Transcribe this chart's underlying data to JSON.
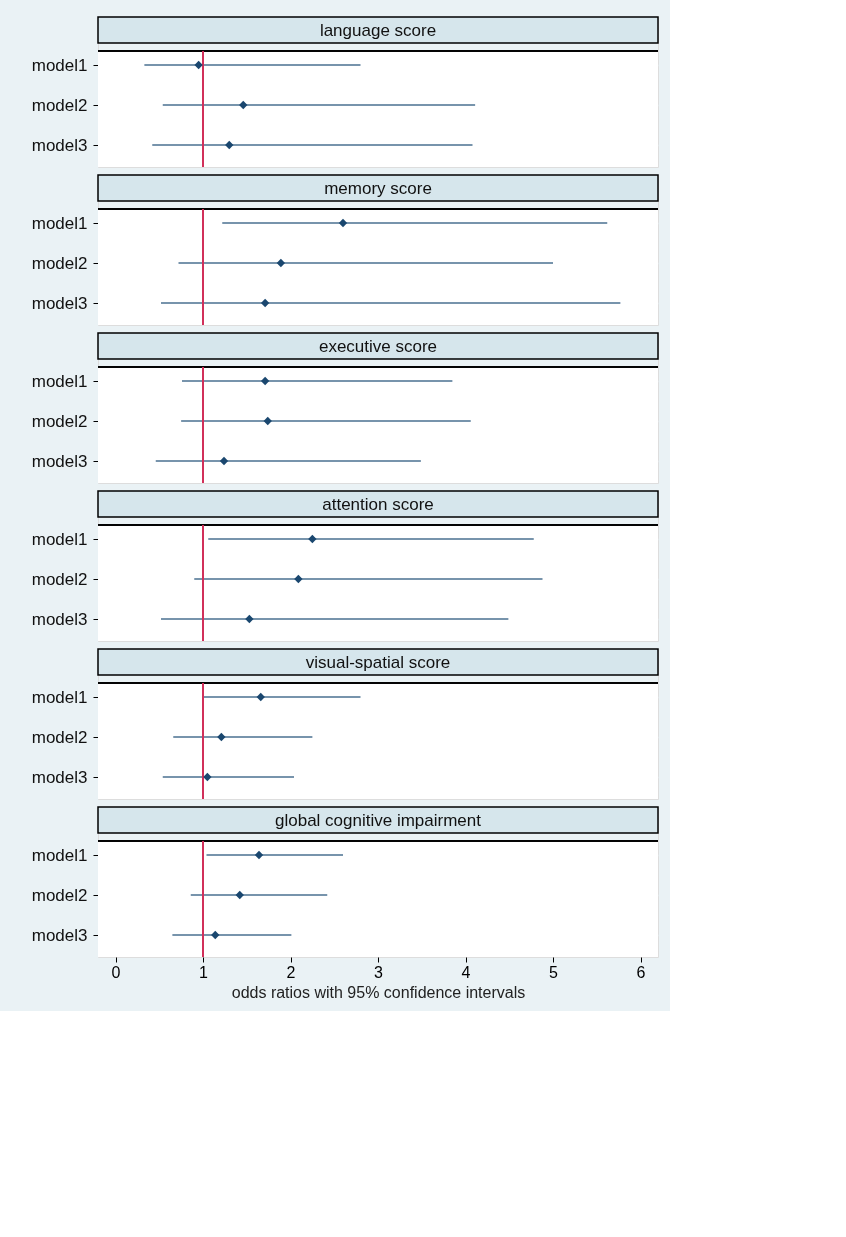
{
  "chart_data": [
    {
      "type": "scatter",
      "orientation": "horizontal",
      "title": "language score",
      "categories": [
        "model1",
        "model2",
        "model3"
      ],
      "values": [
        0.95,
        1.46,
        1.3
      ],
      "errors": [
        [
          0.33,
          2.8
        ],
        [
          0.54,
          4.11
        ],
        [
          0.42,
          4.08
        ]
      ],
      "color": "#1a476f",
      "xlim": [
        -0.2,
        6.2
      ],
      "ref_lines": [
        {
          "axis": "x",
          "value": 1,
          "color": "#d1305a"
        }
      ],
      "marker": "diamond",
      "grid": "y",
      "tick_labels": "y"
    },
    {
      "type": "scatter",
      "orientation": "horizontal",
      "title": "memory score",
      "categories": [
        "model1",
        "model2",
        "model3"
      ],
      "values": [
        2.6,
        1.89,
        1.71
      ],
      "errors": [
        [
          1.22,
          5.62
        ],
        [
          0.72,
          5.0
        ],
        [
          0.52,
          5.77
        ]
      ],
      "color": "#1a476f",
      "xlim": [
        -0.2,
        6.2
      ],
      "ref_lines": [
        {
          "axis": "x",
          "value": 1,
          "color": "#d1305a"
        }
      ],
      "marker": "diamond",
      "grid": "y",
      "tick_labels": "y"
    },
    {
      "type": "scatter",
      "orientation": "horizontal",
      "title": "executive score",
      "categories": [
        "model1",
        "model2",
        "model3"
      ],
      "values": [
        1.71,
        1.74,
        1.24
      ],
      "errors": [
        [
          0.76,
          3.85
        ],
        [
          0.75,
          4.06
        ],
        [
          0.46,
          3.49
        ]
      ],
      "color": "#1a476f",
      "xlim": [
        -0.2,
        6.2
      ],
      "ref_lines": [
        {
          "axis": "x",
          "value": 1,
          "color": "#d1305a"
        }
      ],
      "marker": "diamond",
      "grid": "y",
      "tick_labels": "y"
    },
    {
      "type": "scatter",
      "orientation": "horizontal",
      "title": "attention score",
      "categories": [
        "model1",
        "model2",
        "model3"
      ],
      "values": [
        2.25,
        2.09,
        1.53
      ],
      "errors": [
        [
          1.06,
          4.78
        ],
        [
          0.9,
          4.88
        ],
        [
          0.52,
          4.49
        ]
      ],
      "color": "#1a476f",
      "xlim": [
        -0.2,
        6.2
      ],
      "ref_lines": [
        {
          "axis": "x",
          "value": 1,
          "color": "#d1305a"
        }
      ],
      "marker": "diamond",
      "grid": "y",
      "tick_labels": "y"
    },
    {
      "type": "scatter",
      "orientation": "horizontal",
      "title": "visual-spatial score",
      "categories": [
        "model1",
        "model2",
        "model3"
      ],
      "values": [
        1.66,
        1.21,
        1.05
      ],
      "errors": [
        [
          0.99,
          2.8
        ],
        [
          0.66,
          2.25
        ],
        [
          0.54,
          2.04
        ]
      ],
      "color": "#1a476f",
      "xlim": [
        -0.2,
        6.2
      ],
      "ref_lines": [
        {
          "axis": "x",
          "value": 1,
          "color": "#d1305a"
        }
      ],
      "marker": "diamond",
      "grid": "y",
      "tick_labels": "y"
    },
    {
      "type": "scatter",
      "orientation": "horizontal",
      "title": "global cognitive impairment",
      "xlabel": "odds ratios with 95% confidence intervals",
      "categories": [
        "model1",
        "model2",
        "model3"
      ],
      "values": [
        1.64,
        1.42,
        1.14
      ],
      "errors": [
        [
          1.04,
          2.6
        ],
        [
          0.86,
          2.42
        ],
        [
          0.65,
          2.01
        ]
      ],
      "color": "#1a476f",
      "xlim": [
        -0.2,
        6.2
      ],
      "xticks": [
        0,
        1,
        2,
        3,
        4,
        5,
        6
      ],
      "ref_lines": [
        {
          "axis": "x",
          "value": 1,
          "color": "#d1305a"
        }
      ],
      "marker": "diamond",
      "grid": "y"
    }
  ]
}
